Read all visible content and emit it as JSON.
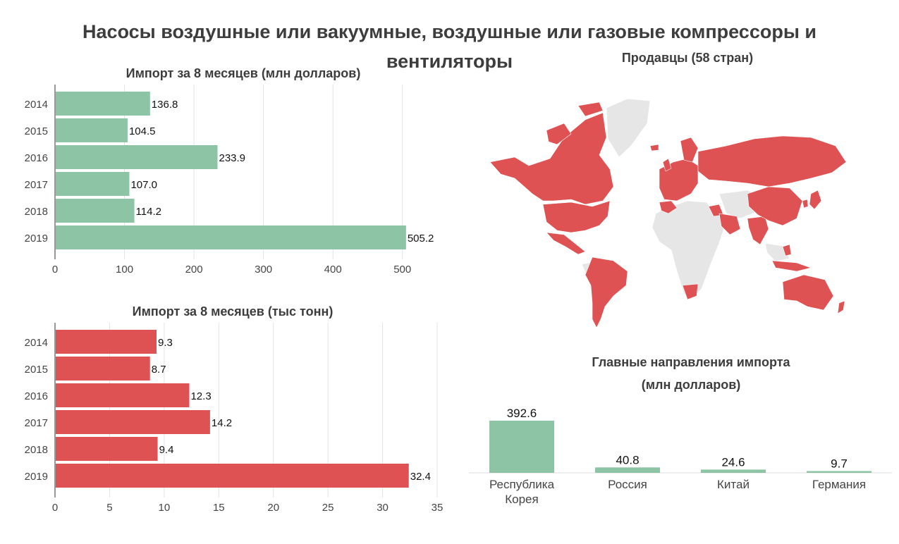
{
  "title": "Насосы воздушные или вакуумные, воздушные или газовые компрессоры и вентиляторы",
  "colors": {
    "green": "#8ec4a6",
    "red": "#de5254",
    "grey": "#e6e6e6",
    "grid": "#e3e3e3",
    "axis": "#555555"
  },
  "map": {
    "subtitle": "Продавцы (58 стран)",
    "highlight_color": "#de5254",
    "base_color": "#e6e6e6"
  },
  "chart_data": [
    {
      "type": "bar",
      "orientation": "horizontal",
      "title": "Импорт за 8 месяцев (млн долларов)",
      "categories": [
        "2014",
        "2015",
        "2016",
        "2017",
        "2018",
        "2019"
      ],
      "values": [
        136.8,
        104.5,
        233.9,
        107.0,
        114.2,
        505.2
      ],
      "value_labels": [
        "136.8",
        "104.5",
        "233.9",
        "107.0",
        "114.2",
        "505.2"
      ],
      "xlim": [
        0,
        550
      ],
      "ticks": [
        "0",
        "100",
        "200",
        "300",
        "400",
        "500"
      ],
      "color": "#8ec4a6",
      "grid": true
    },
    {
      "type": "bar",
      "orientation": "horizontal",
      "title": "Импорт за 8 месяцев (тыс тонн)",
      "categories": [
        "2014",
        "2015",
        "2016",
        "2017",
        "2018",
        "2019"
      ],
      "values": [
        9.3,
        8.7,
        12.3,
        14.2,
        9.4,
        32.4
      ],
      "value_labels": [
        "9.3",
        "8.7",
        "12.3",
        "14.2",
        "9.4",
        "32.4"
      ],
      "xlim": [
        0,
        35
      ],
      "ticks": [
        "0",
        "5",
        "10",
        "15",
        "20",
        "25",
        "30",
        "35"
      ],
      "color": "#de5254",
      "grid": true
    },
    {
      "type": "bar",
      "orientation": "vertical",
      "title": "Главные направления импорта",
      "subtitle": "(млн долларов)",
      "categories": [
        "Республика Корея",
        "Россия",
        "Китай",
        "Германия"
      ],
      "values": [
        392.6,
        40.8,
        24.6,
        9.7
      ],
      "value_labels": [
        "392.6",
        "40.8",
        "24.6",
        "9.7"
      ],
      "color": "#8ec4a6"
    }
  ]
}
